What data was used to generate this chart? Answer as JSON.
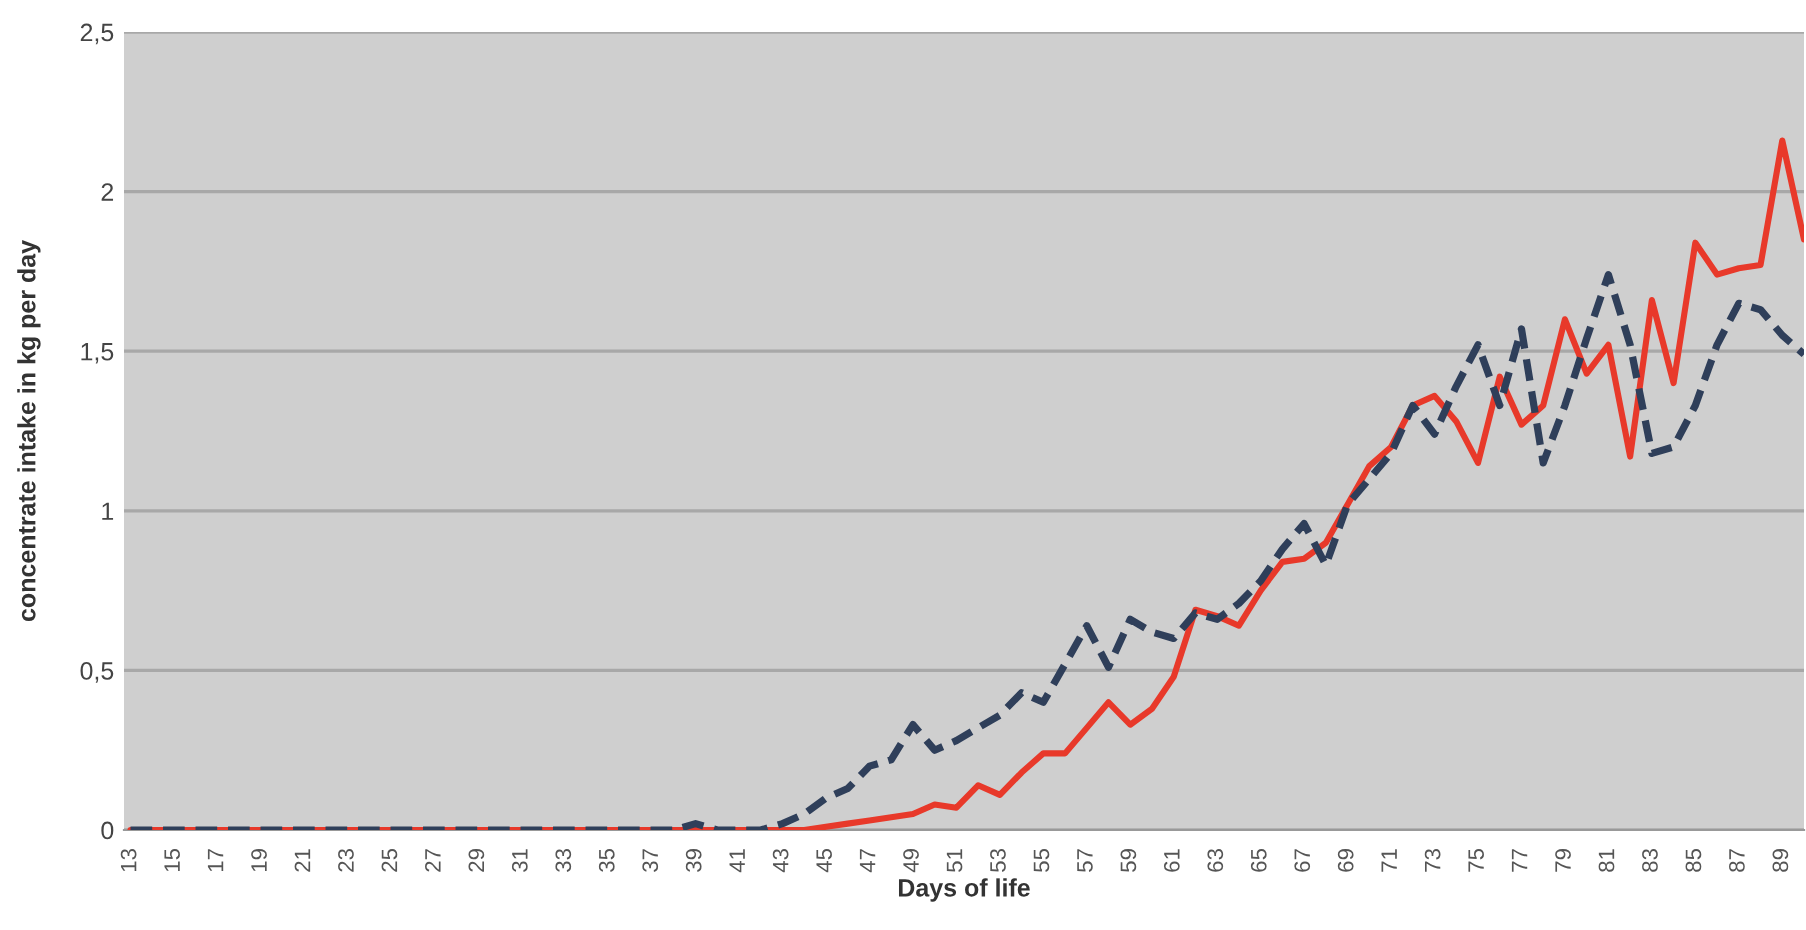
{
  "chart_data": {
    "type": "line",
    "xlabel": "Days of life",
    "ylabel": "concentrate intake in kg per day",
    "categories": [
      "13",
      null,
      "15",
      null,
      "17",
      null,
      "19",
      null,
      "21",
      null,
      "23",
      null,
      "25",
      null,
      "27",
      null,
      "29",
      null,
      "31",
      null,
      "33",
      null,
      "35",
      null,
      "37",
      null,
      "39",
      null,
      "41",
      null,
      "43",
      null,
      "45",
      null,
      "47",
      null,
      "49",
      null,
      "51",
      null,
      "53",
      null,
      "55",
      null,
      "57",
      null,
      "59",
      null,
      "61",
      null,
      "63",
      null,
      "65",
      null,
      "67",
      null,
      "69",
      null,
      "71",
      null,
      "73",
      null,
      "75",
      null,
      "77",
      null,
      "79",
      null,
      "81",
      null,
      "83",
      null,
      "85",
      null,
      "87",
      null,
      "89",
      null
    ],
    "series": [
      {
        "color": "#e8392a",
        "line_style": "solid",
        "values": [
          0,
          0,
          0,
          0,
          0,
          0,
          0,
          0,
          0,
          0,
          0,
          0,
          0,
          0,
          0,
          0,
          0,
          0,
          0,
          0,
          0,
          0,
          0,
          0,
          0,
          0,
          0,
          0,
          0,
          0,
          0,
          0,
          0.01,
          0.02,
          0.03,
          0.04,
          0.05,
          0.08,
          0.07,
          0.14,
          0.11,
          0.18,
          0.24,
          0.24,
          0.32,
          0.4,
          0.33,
          0.38,
          0.48,
          0.69,
          0.67,
          0.64,
          0.75,
          0.84,
          0.85,
          0.9,
          1.02,
          1.14,
          1.2,
          1.33,
          1.36,
          1.28,
          1.15,
          1.42,
          1.27,
          1.33,
          1.6,
          1.43,
          1.52,
          1.17,
          1.66,
          1.4,
          1.84,
          1.74,
          1.76,
          1.77,
          2.16,
          1.85
        ]
      },
      {
        "color": "#2f3f5a",
        "line_style": "dashed",
        "values": [
          0,
          0,
          0,
          0,
          0,
          0,
          0,
          0,
          0,
          0,
          0,
          0,
          0,
          0,
          0,
          0,
          0,
          0,
          0,
          0,
          0,
          0,
          0,
          0,
          0,
          0,
          0.02,
          0,
          0,
          0,
          0.02,
          0.05,
          0.1,
          0.13,
          0.2,
          0.22,
          0.33,
          0.25,
          0.28,
          0.32,
          0.36,
          0.43,
          0.4,
          0.52,
          0.64,
          0.51,
          0.66,
          0.62,
          0.6,
          0.68,
          0.66,
          0.71,
          0.78,
          0.88,
          0.96,
          0.83,
          1.02,
          1.1,
          1.18,
          1.33,
          1.24,
          1.39,
          1.52,
          1.33,
          1.57,
          1.15,
          1.33,
          1.54,
          1.74,
          1.52,
          1.18,
          1.2,
          1.33,
          1.52,
          1.65,
          1.63,
          1.55,
          1.49
        ]
      }
    ],
    "ylim": [
      0,
      2.5
    ],
    "yticks": [
      {
        "value": 0,
        "label": "0"
      },
      {
        "value": 0.5,
        "label": "0,5"
      },
      {
        "value": 1,
        "label": "1"
      },
      {
        "value": 1.5,
        "label": "1,5"
      },
      {
        "value": 2,
        "label": "2"
      },
      {
        "value": 2.5,
        "label": "2,5"
      }
    ],
    "grid": "y"
  }
}
